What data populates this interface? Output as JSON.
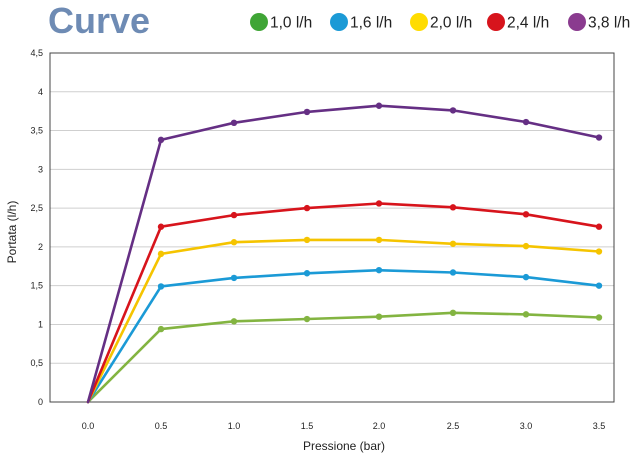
{
  "chart_data": {
    "type": "line",
    "title": "Curve",
    "title_color": "#6e8bb4",
    "xlabel": "Pressione (bar)",
    "ylabel": "Portata (l/h)",
    "x": [
      0.0,
      0.5,
      1.0,
      1.5,
      2.0,
      2.5,
      3.0,
      3.5
    ],
    "x_tick_labels": [
      "0.0",
      "0.5",
      "1.0",
      "1.5",
      "2.0",
      "2.5",
      "3.0",
      "3.5"
    ],
    "y_ticks": [
      0,
      0.5,
      1,
      1.5,
      2,
      2.5,
      3,
      3.5,
      4,
      4.5
    ],
    "y_tick_labels": [
      "0",
      "0,5",
      "1",
      "1,5",
      "2",
      "2,5",
      "3",
      "3,5",
      "4",
      "4,5"
    ],
    "xlim": [
      0,
      3.5
    ],
    "ylim": [
      0,
      4.5
    ],
    "grid": true,
    "legend_position": "top-right",
    "series": [
      {
        "name": "1,0 l/h",
        "color": "#83b441",
        "legend_color": "#3fa535",
        "values": [
          0,
          0.94,
          1.04,
          1.07,
          1.1,
          1.15,
          1.13,
          1.09
        ]
      },
      {
        "name": "1,6 l/h",
        "color": "#1b9ad6",
        "legend_color": "#1b9ad6",
        "values": [
          0,
          1.49,
          1.6,
          1.66,
          1.7,
          1.67,
          1.61,
          1.5
        ]
      },
      {
        "name": "2,0 l/h",
        "color": "#f5c400",
        "legend_color": "#ffdc00",
        "values": [
          0,
          1.91,
          2.06,
          2.09,
          2.09,
          2.04,
          2.01,
          1.94
        ]
      },
      {
        "name": "2,4 l/h",
        "color": "#d7141c",
        "legend_color": "#d7141c",
        "values": [
          0,
          2.26,
          2.41,
          2.5,
          2.56,
          2.51,
          2.42,
          2.26
        ]
      },
      {
        "name": "3,8 l/h",
        "color": "#652f84",
        "legend_color": "#8a3b8f",
        "values": [
          0,
          3.38,
          3.6,
          3.74,
          3.82,
          3.76,
          3.61,
          3.41
        ]
      }
    ]
  }
}
